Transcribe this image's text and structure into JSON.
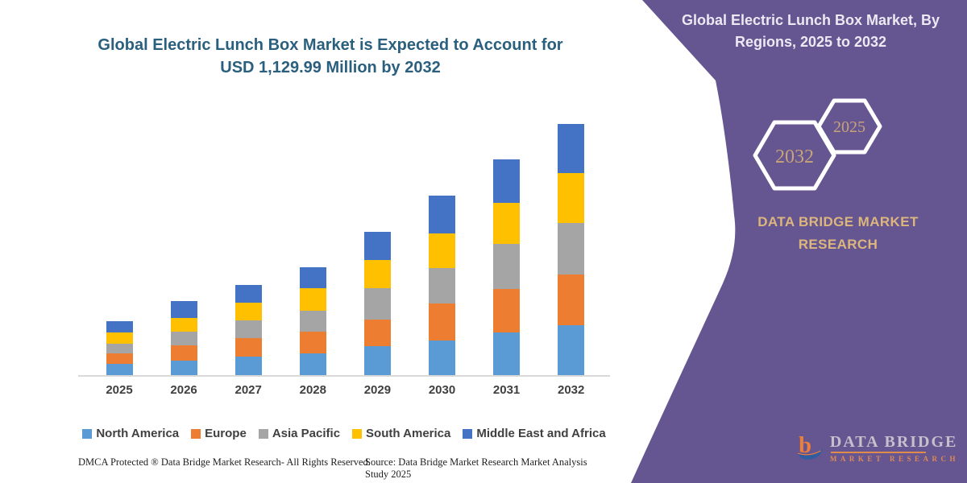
{
  "chart": {
    "title_color": "#2A5F7E"
  },
  "chart_data": {
    "type": "bar",
    "stacked": true,
    "title": "Global Electric Lunch Box Market is Expected to Account for USD 1,129.99 Million by 2032",
    "title_lines": [
      "Global Electric Lunch Box Market is Expected to Account for",
      "USD 1,129.99 Million by 2032"
    ],
    "unit": "USD Million",
    "xlabel": "",
    "ylabel": "",
    "ylim": [
      0,
      1200
    ],
    "grid": false,
    "legend_position": "bottom",
    "categories": [
      "2025",
      "2026",
      "2027",
      "2028",
      "2029",
      "2030",
      "2031",
      "2032"
    ],
    "series": [
      {
        "name": "North America",
        "color": "#5B9BD5",
        "values": [
          52,
          64,
          82,
          97,
          129,
          157,
          192,
          223
        ]
      },
      {
        "name": "Europe",
        "color": "#ED7D31",
        "values": [
          45,
          69,
          84,
          100,
          121,
          165,
          197,
          229
        ]
      },
      {
        "name": "Asia Pacific",
        "color": "#A5A5A5",
        "values": [
          46,
          64,
          79,
          93,
          142,
          161,
          202,
          233
        ]
      },
      {
        "name": "South America",
        "color": "#FFC000",
        "values": [
          48,
          62,
          81,
          100,
          126,
          156,
          185,
          224
        ]
      },
      {
        "name": "Middle East and Africa",
        "color": "#4472C4",
        "values": [
          51,
          73,
          80,
          97,
          127,
          169,
          196,
          221
        ]
      }
    ],
    "estimated_totals": [
      242,
      332,
      406,
      487,
      645,
      808,
      972,
      1130
    ],
    "highlight_value_2032": "USD 1,129.99 Million"
  },
  "side_panel": {
    "heading": "Global Electric Lunch Box Market, By Regions, 2025 to 2032",
    "hexagon_left_year": "2032",
    "hexagon_right_year": "2025",
    "brand_heading": "DATA BRIDGE MARKET RESEARCH",
    "bg_color": "#655590",
    "accent_text_color": "#DCB67D"
  },
  "logo": {
    "name": "DATA BRIDGE",
    "subtitle": "MARKET RESEARCH",
    "orange": "#EE7F3B",
    "blue": "#2F5D9E"
  },
  "footer": {
    "left": "DMCA Protected ® Data Bridge Market Research-  All Rights Reserved.",
    "right": "Source: Data Bridge Market Research  Market Analysis Study 2025"
  }
}
